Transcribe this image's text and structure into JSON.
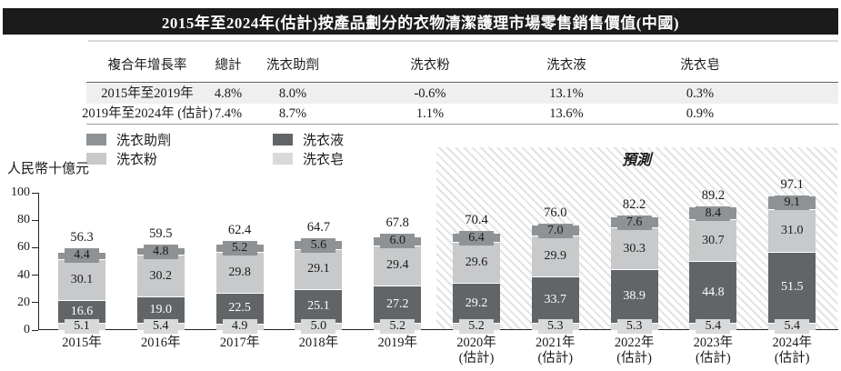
{
  "title": "2015年至2024年(估計)按產品劃分的衣物清潔護理市場零售銷售價值(中國)",
  "table": {
    "headers": [
      "複合年增長率",
      "總計",
      "洗衣助劑",
      "洗衣粉",
      "洗衣液",
      "洗衣皂"
    ],
    "rows": [
      {
        "cells": [
          "2015年至2019年",
          "4.8%",
          "8.0%",
          "-0.6%",
          "13.1%",
          "0.3%"
        ]
      },
      {
        "cells": [
          "2019年至2024年 (估計)",
          "7.4%",
          "8.7%",
          "1.1%",
          "13.6%",
          "0.9%"
        ]
      }
    ]
  },
  "legend": [
    {
      "label": "洗衣助劑",
      "color": "#8f9294"
    },
    {
      "label": "洗衣粉",
      "color": "#c7c9cb"
    },
    {
      "label": "洗衣液",
      "color": "#616568"
    },
    {
      "label": "洗衣皂",
      "color": "#d7d9da"
    }
  ],
  "y_axis_unit": "人民幣十億元",
  "forecast_label": "預測",
  "chart_data": {
    "type": "bar",
    "stacked": true,
    "title": "2015年至2024年(估計)按產品劃分的衣物清潔護理市場零售銷售價值(中國)",
    "ylabel": "人民幣十億元",
    "ylim": [
      0,
      100
    ],
    "yticks": [
      0,
      20,
      40,
      60,
      80,
      100
    ],
    "grid": false,
    "legend_position": "top-left",
    "categories": [
      "2015年",
      "2016年",
      "2017年",
      "2018年",
      "2019年",
      "2020年",
      "2021年",
      "2022年",
      "2023年",
      "2024年"
    ],
    "category_sublabels": [
      "",
      "",
      "",
      "",
      "",
      "(估計)",
      "(估計)",
      "(估計)",
      "(估計)",
      "(估計)"
    ],
    "series": [
      {
        "name": "洗衣皂",
        "color": "#d7d9da",
        "label_style": "chip-bottom",
        "values": [
          5.1,
          5.4,
          4.9,
          5.0,
          5.2,
          5.2,
          5.3,
          5.3,
          5.4,
          5.4
        ]
      },
      {
        "name": "洗衣液",
        "color": "#616568",
        "label_style": "inside-white",
        "values": [
          16.6,
          19.0,
          22.5,
          25.1,
          27.2,
          29.2,
          33.7,
          38.9,
          44.8,
          51.5
        ]
      },
      {
        "name": "洗衣粉",
        "color": "#c7c9cb",
        "label_style": "inside-dark",
        "values": [
          30.1,
          30.2,
          29.8,
          29.1,
          29.4,
          29.6,
          29.9,
          30.3,
          30.7,
          31.0
        ]
      },
      {
        "name": "洗衣助劑",
        "color": "#8f9294",
        "label_style": "chip-top",
        "values": [
          4.4,
          4.8,
          5.2,
          5.6,
          6.0,
          6.4,
          7.0,
          7.6,
          8.4,
          9.1
        ]
      }
    ],
    "totals": [
      56.3,
      59.5,
      62.4,
      64.7,
      67.8,
      70.4,
      76.0,
      82.2,
      89.2,
      97.1
    ],
    "forecast_from_index": 5
  }
}
